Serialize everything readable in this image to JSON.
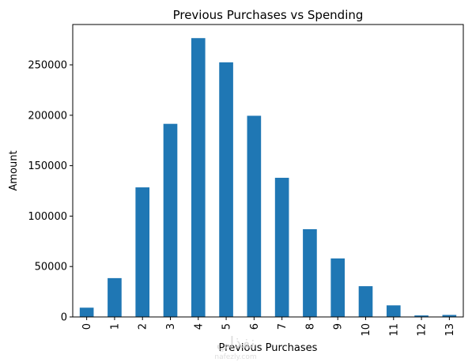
{
  "chart_data": {
    "type": "bar",
    "title": "Previous Purchases vs Spending",
    "xlabel": "Previous Purchases",
    "ylabel": "Amount",
    "categories": [
      "0",
      "1",
      "2",
      "3",
      "4",
      "5",
      "6",
      "7",
      "8",
      "9",
      "10",
      "11",
      "12",
      "13"
    ],
    "values": [
      9200,
      38500,
      128500,
      191500,
      276500,
      252500,
      199500,
      138000,
      87000,
      58000,
      30500,
      11500,
      1500,
      2000
    ],
    "ylim": [
      0,
      290000
    ],
    "yticks": [
      0,
      50000,
      100000,
      150000,
      200000,
      250000
    ],
    "ytick_labels": [
      "0",
      "50000",
      "100000",
      "150000",
      "200000",
      "250000"
    ],
    "bar_color": "#1f77b4",
    "grid": false,
    "legend": "none"
  },
  "watermark": {
    "text": "نفذلي",
    "subtext": "nafezly.com"
  }
}
